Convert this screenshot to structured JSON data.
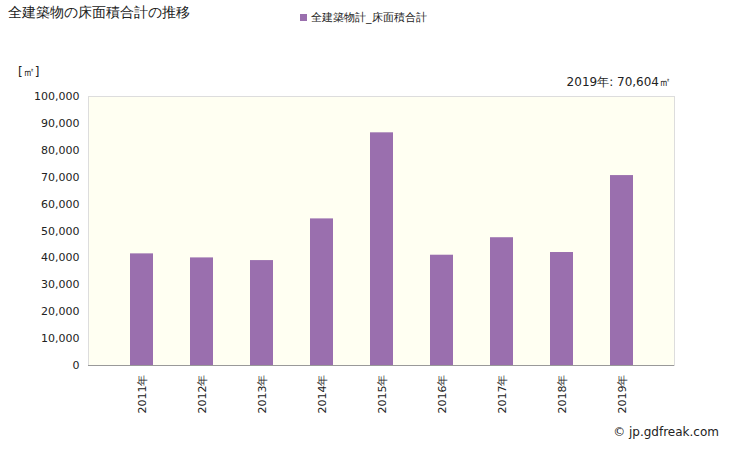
{
  "chart_data": {
    "type": "bar",
    "title": "全建築物の床面積合計の推移",
    "ylabel": "[㎡]",
    "annotations": [
      "2019年: 70,604㎡"
    ],
    "caption": "© jp.gdfreak.com",
    "legend": "top",
    "grid": false,
    "categories": [
      "2011年",
      "2012年",
      "2013年",
      "2014年",
      "2015年",
      "2016年",
      "2017年",
      "2018年",
      "2019年"
    ],
    "series": [
      {
        "name": "全建築物計_床面積合計",
        "color": "#9a6fae",
        "values": [
          41500,
          40000,
          39000,
          54500,
          86500,
          41000,
          47500,
          42000,
          70604
        ]
      }
    ],
    "ylim": [
      0,
      100000
    ],
    "yticks": [
      0,
      {
        "value": 10000,
        "label": "10,000"
      },
      {
        "value": 20000,
        "label": "20,000"
      },
      {
        "value": 30000,
        "label": "30,000"
      },
      {
        "value": 40000,
        "label": "40,000"
      },
      {
        "value": 50000,
        "label": "50,000"
      },
      {
        "value": 60000,
        "label": "60,000"
      },
      {
        "value": 70000,
        "label": "70,000"
      },
      {
        "value": 80000,
        "label": "80,000"
      },
      {
        "value": 90000,
        "label": "90,000"
      },
      {
        "value": 100000,
        "label": "100,000"
      }
    ]
  }
}
